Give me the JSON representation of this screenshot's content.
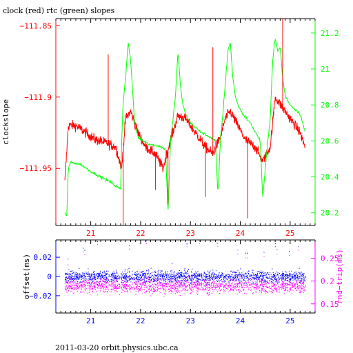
{
  "title": "clock (red) rtc (green) slopes",
  "footer": "2011-03-20 orbit.physics.ubc.ca",
  "chart_data": [
    {
      "type": "line",
      "panel": "top",
      "ylabel": "clockslope",
      "x_ticks": [
        "21",
        "22",
        "23",
        "24",
        "25"
      ],
      "x_tick_values": [
        21,
        22,
        23,
        24,
        25
      ],
      "xlim": [
        20.3,
        25.5
      ],
      "left_axis": {
        "ylim": [
          -111.99,
          -111.845
        ],
        "ticks": [
          "−111.85",
          "−111.9",
          "−111.95"
        ],
        "tick_values": [
          -111.85,
          -111.9,
          -111.95
        ],
        "color": "#ff0000"
      },
      "right_axis": {
        "ylim": [
          20.13,
          21.28
        ],
        "ticks": [
          "21.2",
          "21",
          "20.8",
          "20.6",
          "20.4",
          "20.2"
        ],
        "tick_values": [
          21.2,
          21.0,
          20.8,
          20.6,
          20.4,
          20.2
        ],
        "color": "#00ff00"
      },
      "series": [
        {
          "name": "clock (red)",
          "axis": "left",
          "color": "#ff0000",
          "x": [
            20.48,
            20.55,
            20.7,
            20.9,
            21.1,
            21.3,
            21.5,
            21.62,
            21.7,
            21.8,
            21.95,
            22.1,
            22.3,
            22.45,
            22.6,
            22.75,
            22.9,
            23.1,
            23.3,
            23.45,
            23.6,
            23.7,
            23.8,
            23.95,
            24.1,
            24.3,
            24.45,
            24.6,
            24.7,
            24.8,
            25.0,
            25.2,
            25.3
          ],
          "y": [
            -111.96,
            -111.92,
            -111.92,
            -111.925,
            -111.93,
            -111.932,
            -111.935,
            -111.95,
            -111.915,
            -111.91,
            -111.925,
            -111.935,
            -111.94,
            -111.95,
            -111.93,
            -111.913,
            -111.915,
            -111.925,
            -111.935,
            -111.94,
            -111.928,
            -111.915,
            -111.91,
            -111.92,
            -111.93,
            -111.935,
            -111.945,
            -111.935,
            -111.9,
            -111.905,
            -111.915,
            -111.925,
            -111.935
          ]
        },
        {
          "name": "rtc (green)",
          "axis": "right",
          "color": "#00ff00",
          "x": [
            20.48,
            20.52,
            20.55,
            20.6,
            20.8,
            21.0,
            21.2,
            21.4,
            21.5,
            21.6,
            21.62,
            21.65,
            21.7,
            21.75,
            21.8,
            21.88,
            21.95,
            22.05,
            22.2,
            22.4,
            22.5,
            22.55,
            22.6,
            22.65,
            22.7,
            22.75,
            22.8,
            22.85,
            22.9,
            23.0,
            23.2,
            23.4,
            23.5,
            23.55,
            23.6,
            23.65,
            23.7,
            23.75,
            23.8,
            23.85,
            23.9,
            23.95,
            24.05,
            24.2,
            24.3,
            24.4,
            24.45,
            24.55,
            24.6,
            24.65,
            24.7,
            24.75,
            24.8,
            24.85,
            24.9,
            25.0,
            25.2,
            25.3
          ],
          "y": [
            20.2,
            20.18,
            20.45,
            20.48,
            20.47,
            20.43,
            20.4,
            20.37,
            20.35,
            20.33,
            20.6,
            20.82,
            20.95,
            21.15,
            21.05,
            20.7,
            20.62,
            20.6,
            20.58,
            20.57,
            20.55,
            20.2,
            20.6,
            20.72,
            20.85,
            21.1,
            20.9,
            20.8,
            20.75,
            20.7,
            20.65,
            20.62,
            20.6,
            20.3,
            20.6,
            20.75,
            20.92,
            21.1,
            21.15,
            20.95,
            20.85,
            20.8,
            20.75,
            20.7,
            20.65,
            20.6,
            20.28,
            20.6,
            20.72,
            21.05,
            21.17,
            21.1,
            21.12,
            20.95,
            20.85,
            20.8,
            20.75,
            20.65
          ]
        }
      ],
      "spikes": [
        {
          "x": 21.35,
          "y": -111.87
        },
        {
          "x": 21.65,
          "y": -111.99
        },
        {
          "x": 22.3,
          "y": -111.965
        },
        {
          "x": 22.55,
          "y": -111.975
        },
        {
          "x": 23.3,
          "y": -111.97
        },
        {
          "x": 23.45,
          "y": -111.865
        },
        {
          "x": 24.15,
          "y": -111.985
        },
        {
          "x": 24.85,
          "y": -111.845
        }
      ]
    },
    {
      "type": "scatter",
      "panel": "bottom",
      "ylabel": "offset(ms)",
      "y2label": "rnd−trip(ms)",
      "x_ticks": [
        "21",
        "22",
        "23",
        "24",
        "25"
      ],
      "x_tick_values": [
        21,
        22,
        23,
        24,
        25
      ],
      "xlim": [
        20.3,
        25.5
      ],
      "left_axis": {
        "ylim": [
          -0.038,
          0.038
        ],
        "ticks": [
          "0.02",
          "0",
          "−0.02"
        ],
        "tick_values": [
          0.02,
          0,
          -0.02
        ],
        "color": "#0000ff"
      },
      "right_axis": {
        "ylim": [
          0.13,
          0.29
        ],
        "ticks": [
          "0.25",
          "0.2",
          "0.15"
        ],
        "tick_values": [
          0.25,
          0.2,
          0.15
        ],
        "color": "#ff00ff"
      },
      "series": [
        {
          "name": "offset",
          "axis": "left",
          "color": "#0000ff",
          "x_range": [
            20.48,
            25.3
          ],
          "y_center": 0.0,
          "y_spread": 0.008
        },
        {
          "name": "rnd-trip",
          "axis": "right",
          "color": "#ff00ff",
          "x_range": [
            20.48,
            25.3
          ],
          "y_center": 0.19,
          "y_spread": 0.02
        }
      ]
    }
  ]
}
